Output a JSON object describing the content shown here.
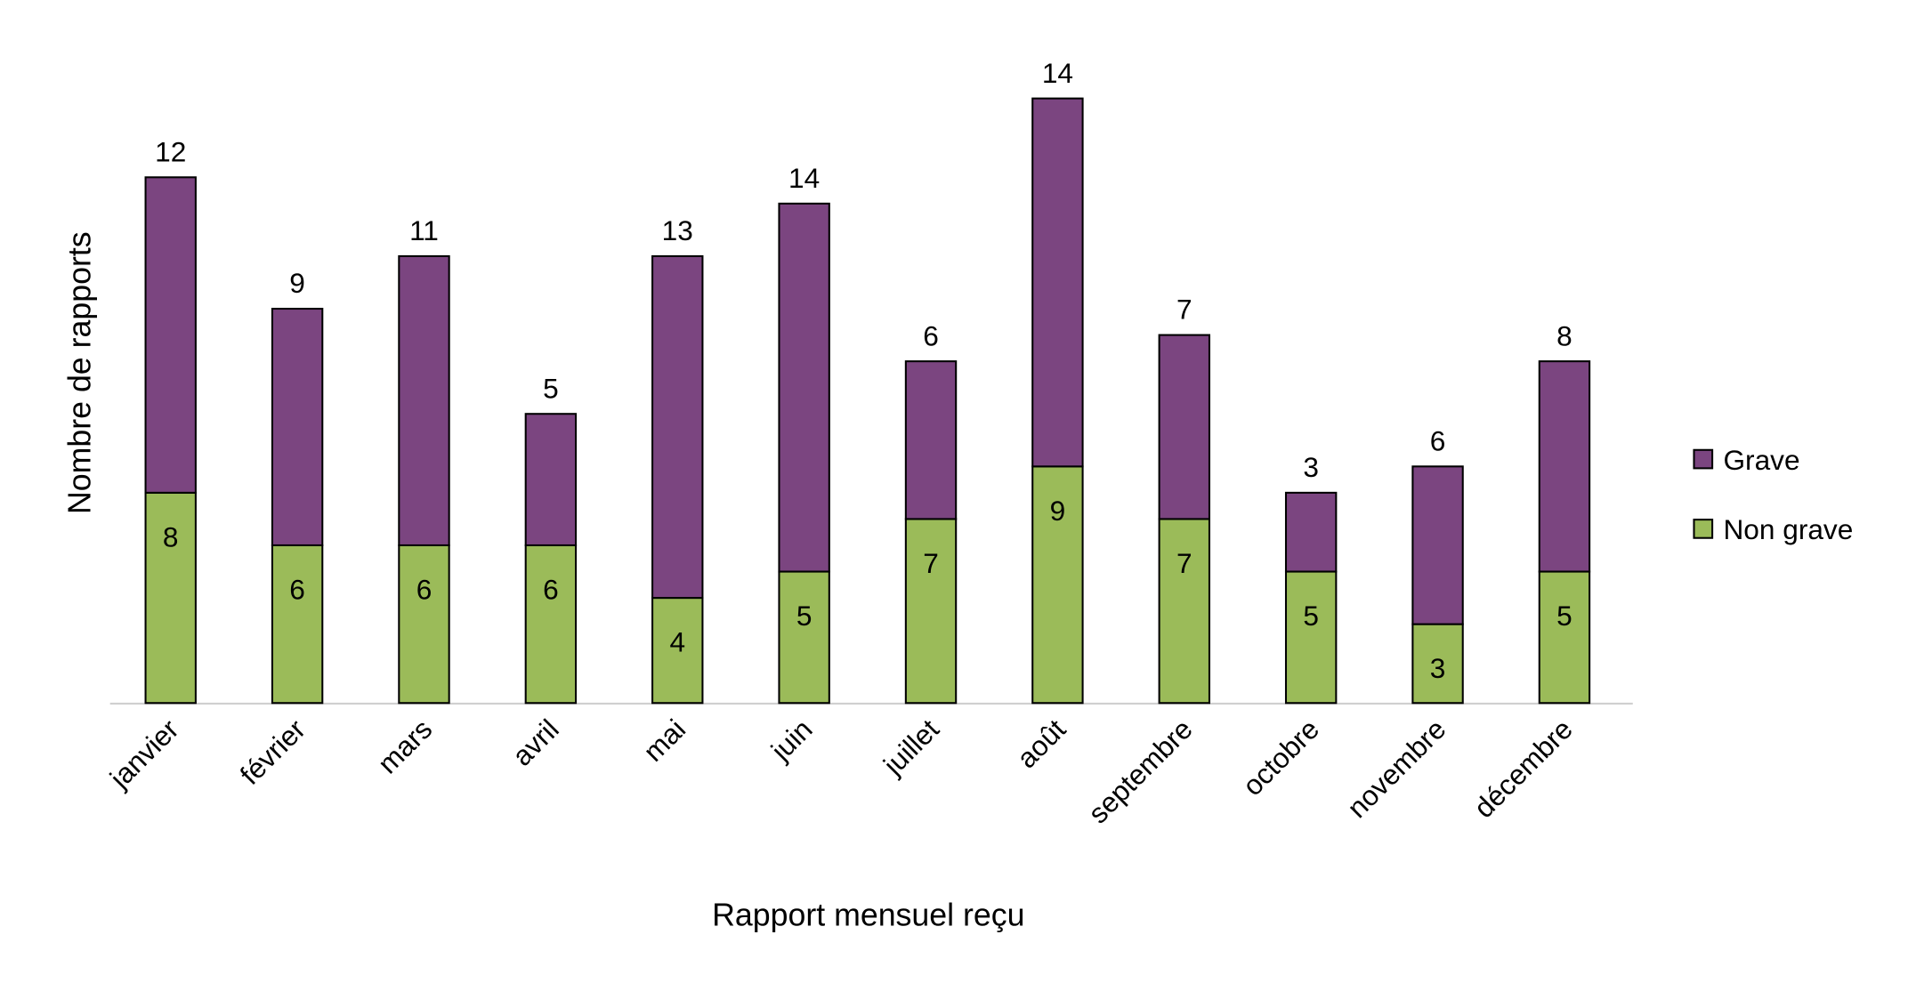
{
  "chart_data": {
    "type": "bar",
    "stacked": true,
    "title": "",
    "xlabel": "Rapport mensuel reçu",
    "ylabel": "Nombre de rapports",
    "categories": [
      "janvier",
      "février",
      "mars",
      "avril",
      "mai",
      "juin",
      "juillet",
      "août",
      "septembre",
      "octobre",
      "novembre",
      "décembre"
    ],
    "series": [
      {
        "name": "Non grave",
        "color": "#9BBB59",
        "values": [
          8,
          6,
          6,
          6,
          4,
          5,
          7,
          9,
          7,
          5,
          3,
          5
        ]
      },
      {
        "name": "Grave",
        "color": "#7B4580",
        "values": [
          12,
          9,
          11,
          5,
          13,
          14,
          6,
          14,
          7,
          3,
          6,
          8
        ]
      }
    ],
    "ylim": [
      0,
      24
    ],
    "grid": false,
    "legend": "right",
    "data_labels": true
  }
}
